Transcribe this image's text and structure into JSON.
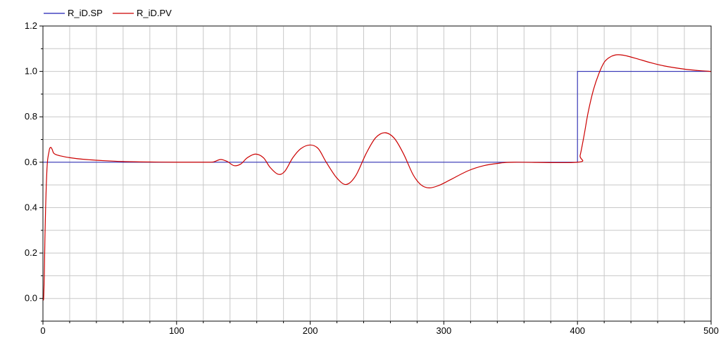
{
  "chart_data": {
    "type": "line",
    "title": "",
    "xlabel": "",
    "ylabel": "",
    "xlim": [
      0,
      500
    ],
    "ylim": [
      -0.1,
      1.2
    ],
    "xticks": [
      "0",
      "100",
      "200",
      "300",
      "400",
      "500"
    ],
    "yticks": [
      "0.0",
      "0.2",
      "0.4",
      "0.6",
      "0.8",
      "1.0",
      "1.2"
    ],
    "grid": true,
    "legend_position": "top-left",
    "series": [
      {
        "name": "R_iD.SP",
        "color": "#1f1fb4",
        "x": [
          0,
          400,
          400,
          500
        ],
        "y": [
          0.6,
          0.6,
          1.0,
          1.0
        ]
      },
      {
        "name": "R_iD.PV",
        "color": "#cc0000",
        "x": [
          0,
          0.5,
          1,
          1.5,
          2,
          2.5,
          3,
          3.5,
          4,
          4.5,
          5,
          6,
          7,
          8,
          10,
          13,
          20,
          30,
          45,
          60,
          80,
          100,
          115,
          125,
          128,
          133,
          138,
          143,
          148,
          153,
          159,
          165,
          170,
          176,
          181,
          187,
          193,
          200,
          206,
          212,
          220,
          227,
          234,
          242,
          249,
          256,
          263,
          270,
          277,
          283,
          289,
          296,
          305,
          318,
          330,
          342,
          353,
          400,
          402,
          405,
          408,
          412,
          416,
          420,
          424,
          428,
          432,
          437,
          445,
          455,
          465,
          480,
          490,
          500
        ],
        "y": [
          0.0,
          0.0,
          0.1,
          0.27,
          0.4,
          0.5,
          0.57,
          0.61,
          0.63,
          0.645,
          0.66,
          0.665,
          0.655,
          0.64,
          0.633,
          0.628,
          0.62,
          0.613,
          0.607,
          0.603,
          0.601,
          0.6,
          0.6,
          0.6,
          0.602,
          0.612,
          0.603,
          0.585,
          0.592,
          0.62,
          0.636,
          0.62,
          0.577,
          0.547,
          0.56,
          0.62,
          0.66,
          0.676,
          0.66,
          0.6,
          0.53,
          0.502,
          0.54,
          0.64,
          0.708,
          0.73,
          0.705,
          0.635,
          0.545,
          0.5,
          0.487,
          0.497,
          0.523,
          0.562,
          0.585,
          0.596,
          0.6,
          0.6,
          0.63,
          0.72,
          0.82,
          0.92,
          0.99,
          1.04,
          1.062,
          1.072,
          1.073,
          1.068,
          1.055,
          1.038,
          1.024,
          1.01,
          1.004,
          1.0
        ]
      }
    ]
  }
}
